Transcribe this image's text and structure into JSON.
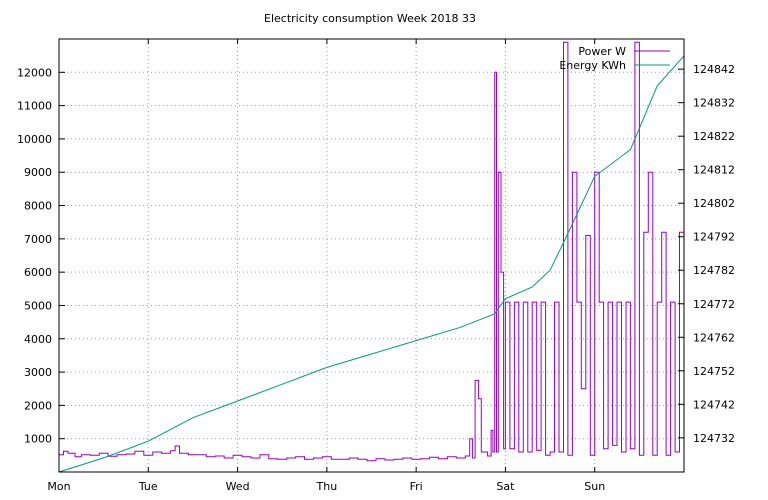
{
  "chart_data": {
    "type": "line",
    "title": "Electricity consumption Week 2018 33",
    "x_categories": [
      "Mon",
      "Tue",
      "Wed",
      "Thu",
      "Fri",
      "Sat",
      "Sun"
    ],
    "x_range_days": [
      0,
      7
    ],
    "y_left_ticks": [
      1000,
      2000,
      3000,
      4000,
      5000,
      6000,
      7000,
      8000,
      9000,
      10000,
      11000,
      12000
    ],
    "y_left_range": [
      0,
      13000
    ],
    "y_right_ticks": [
      124732,
      124742,
      124752,
      124762,
      124772,
      124782,
      124792,
      124802,
      124812,
      124822,
      124832,
      124842
    ],
    "y_right_range": [
      124721.8,
      124851.0
    ],
    "grid": true,
    "legend_position": "top-right",
    "series": [
      {
        "name": "Power W",
        "axis": "left",
        "color": "#9400d3",
        "points": [
          [
            0.0,
            520
          ],
          [
            0.05,
            620
          ],
          [
            0.1,
            560
          ],
          [
            0.18,
            460
          ],
          [
            0.25,
            520
          ],
          [
            0.35,
            500
          ],
          [
            0.45,
            560
          ],
          [
            0.55,
            470
          ],
          [
            0.65,
            520
          ],
          [
            0.75,
            540
          ],
          [
            0.85,
            620
          ],
          [
            0.95,
            500
          ],
          [
            1.05,
            600
          ],
          [
            1.15,
            560
          ],
          [
            1.25,
            640
          ],
          [
            1.3,
            780
          ],
          [
            1.35,
            560
          ],
          [
            1.45,
            520
          ],
          [
            1.55,
            520
          ],
          [
            1.65,
            460
          ],
          [
            1.75,
            480
          ],
          [
            1.85,
            420
          ],
          [
            1.95,
            500
          ],
          [
            2.05,
            460
          ],
          [
            2.15,
            420
          ],
          [
            2.25,
            520
          ],
          [
            2.35,
            400
          ],
          [
            2.45,
            380
          ],
          [
            2.55,
            420
          ],
          [
            2.65,
            460
          ],
          [
            2.75,
            380
          ],
          [
            2.85,
            420
          ],
          [
            2.95,
            460
          ],
          [
            3.05,
            380
          ],
          [
            3.15,
            380
          ],
          [
            3.25,
            420
          ],
          [
            3.35,
            380
          ],
          [
            3.45,
            340
          ],
          [
            3.55,
            400
          ],
          [
            3.65,
            360
          ],
          [
            3.75,
            380
          ],
          [
            3.85,
            420
          ],
          [
            3.95,
            380
          ],
          [
            4.05,
            400
          ],
          [
            4.15,
            440
          ],
          [
            4.25,
            400
          ],
          [
            4.35,
            460
          ],
          [
            4.45,
            420
          ],
          [
            4.55,
            480
          ],
          [
            4.6,
            1000
          ],
          [
            4.63,
            420
          ],
          [
            4.66,
            2750
          ],
          [
            4.7,
            2200
          ],
          [
            4.73,
            600
          ],
          [
            4.8,
            480
          ],
          [
            4.84,
            1250
          ],
          [
            4.86,
            600
          ],
          [
            4.88,
            12000
          ],
          [
            4.9,
            600
          ],
          [
            4.92,
            9000
          ],
          [
            4.95,
            6000
          ],
          [
            4.98,
            700
          ],
          [
            5.0,
            5100
          ],
          [
            5.05,
            700
          ],
          [
            5.1,
            5100
          ],
          [
            5.15,
            600
          ],
          [
            5.2,
            5100
          ],
          [
            5.25,
            600
          ],
          [
            5.3,
            5100
          ],
          [
            5.35,
            650
          ],
          [
            5.4,
            5100
          ],
          [
            5.45,
            500
          ],
          [
            5.5,
            600
          ],
          [
            5.55,
            5100
          ],
          [
            5.6,
            600
          ],
          [
            5.65,
            12900
          ],
          [
            5.7,
            500
          ],
          [
            5.75,
            9000
          ],
          [
            5.8,
            5100
          ],
          [
            5.85,
            2500
          ],
          [
            5.9,
            7100
          ],
          [
            5.95,
            500
          ],
          [
            6.0,
            9000
          ],
          [
            6.05,
            5100
          ],
          [
            6.1,
            700
          ],
          [
            6.15,
            5100
          ],
          [
            6.2,
            800
          ],
          [
            6.25,
            5100
          ],
          [
            6.3,
            600
          ],
          [
            6.35,
            5100
          ],
          [
            6.4,
            700
          ],
          [
            6.45,
            12900
          ],
          [
            6.5,
            500
          ],
          [
            6.55,
            7200
          ],
          [
            6.6,
            9000
          ],
          [
            6.65,
            500
          ],
          [
            6.7,
            5100
          ],
          [
            6.75,
            7200
          ],
          [
            6.8,
            500
          ],
          [
            6.85,
            5100
          ],
          [
            6.9,
            600
          ],
          [
            6.95,
            7200
          ],
          [
            7.0,
            600
          ]
        ]
      },
      {
        "name": "Energy KWh",
        "axis": "right",
        "color": "#009e73",
        "points": [
          [
            0.0,
            124721.8
          ],
          [
            0.5,
            124726.0
          ],
          [
            1.0,
            124731.0
          ],
          [
            1.5,
            124738.0
          ],
          [
            2.0,
            124743.0
          ],
          [
            2.5,
            124748.0
          ],
          [
            3.0,
            124753.0
          ],
          [
            3.5,
            124757.0
          ],
          [
            4.0,
            124761.0
          ],
          [
            4.5,
            124765.0
          ],
          [
            4.88,
            124769.0
          ],
          [
            5.0,
            124773.5
          ],
          [
            5.3,
            124777.0
          ],
          [
            5.5,
            124782.0
          ],
          [
            5.7,
            124793.0
          ],
          [
            6.0,
            124810.0
          ],
          [
            6.4,
            124818.0
          ],
          [
            6.7,
            124837.0
          ],
          [
            7.0,
            124846.0
          ]
        ]
      }
    ]
  }
}
